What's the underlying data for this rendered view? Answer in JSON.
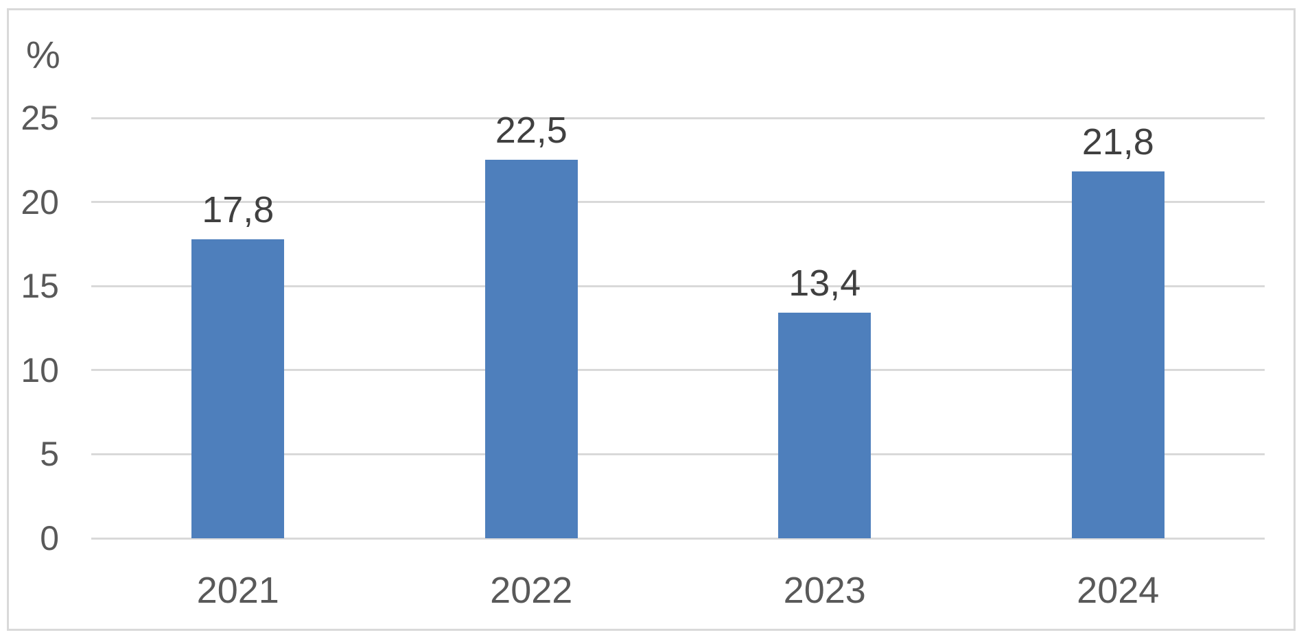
{
  "chart_data": {
    "type": "bar",
    "title": "",
    "xlabel": "",
    "ylabel": "%",
    "categories": [
      "2021",
      "2022",
      "2023",
      "2024"
    ],
    "values": [
      17.8,
      22.5,
      13.4,
      21.8
    ],
    "value_labels": [
      "17,8",
      "22,5",
      "13,4",
      "21,8"
    ],
    "ylim": [
      0,
      25
    ],
    "yticks": [
      25,
      20,
      15,
      10,
      5,
      0
    ],
    "grid": true,
    "legend": false,
    "decimal_separator": ","
  },
  "colors": {
    "bar_fill": "#4e7fbc",
    "gridline": "#d9d9d9",
    "frame_border": "#d9d9d9",
    "axis_text": "#595959",
    "data_label_text": "#404040"
  }
}
